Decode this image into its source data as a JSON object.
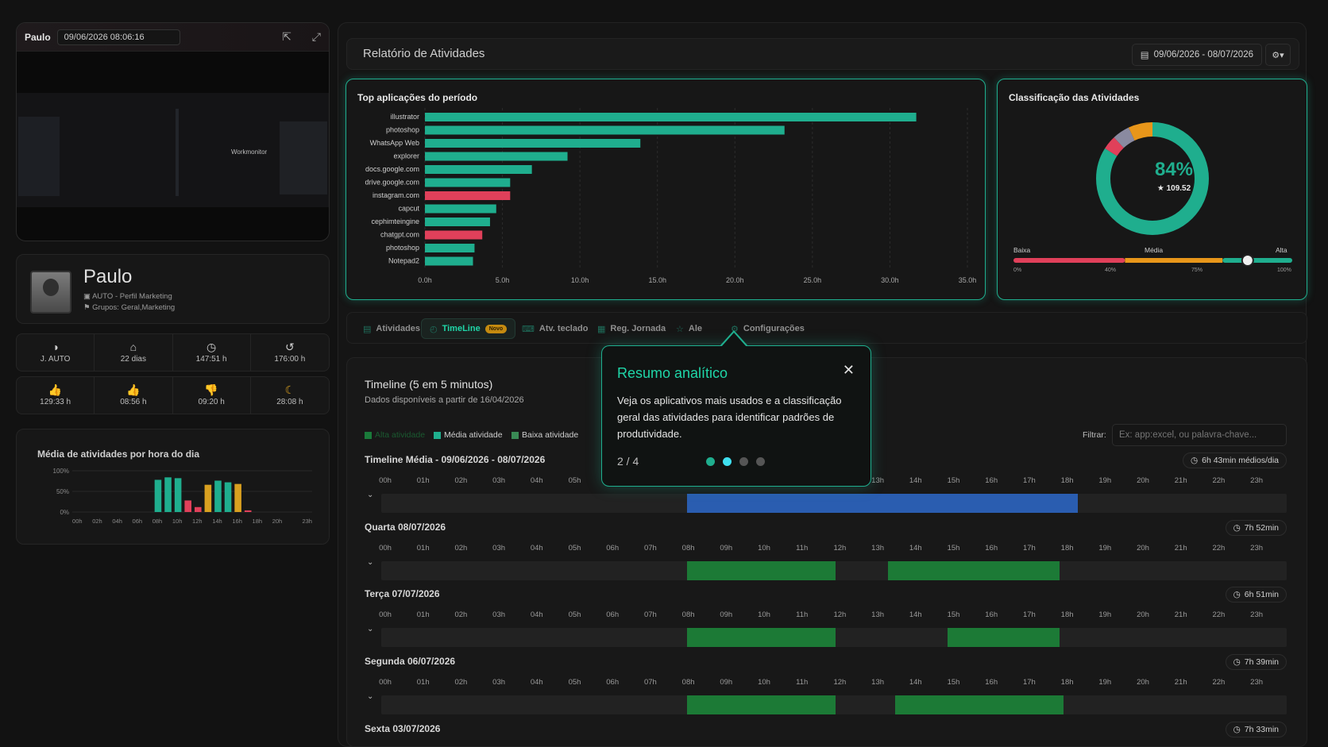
{
  "video": {
    "name": "Paulo",
    "timestamp": "09/06/2026 08:06:16",
    "brand": "Workmonitor"
  },
  "profile": {
    "name": "Paulo",
    "role": "AUTO - Perfil Marketing",
    "groups": "Grupos: Geral,Marketing"
  },
  "stats_row1": [
    {
      "icon": "gauge-icon",
      "glyph": "◑",
      "value": "J. AUTO",
      "color": "#cfcfcf"
    },
    {
      "icon": "home-icon",
      "glyph": "⌂",
      "value": "22 dias",
      "color": "#cfcfcf"
    },
    {
      "icon": "clock-icon",
      "glyph": "◷",
      "value": "147:51 h",
      "color": "#cfcfcf"
    },
    {
      "icon": "history-icon",
      "glyph": "↺",
      "value": "176:00 h",
      "color": "#cfcfcf"
    }
  ],
  "stats_row2": [
    {
      "icon": "thumbs-up-green-icon",
      "glyph": "👍",
      "value": "129:33 h",
      "color": "#1fae8e"
    },
    {
      "icon": "thumbs-up-gray-icon",
      "glyph": "👍",
      "value": "08:56 h",
      "color": "#aaaaaa"
    },
    {
      "icon": "thumbs-down-icon",
      "glyph": "👎",
      "value": "09:20 h",
      "color": "#e0405a"
    },
    {
      "icon": "moon-icon",
      "glyph": "☾",
      "value": "28:08 h",
      "color": "#d9a020"
    }
  ],
  "hourly": {
    "title": "Média de atividades por hora do dia",
    "yticks": [
      "100%",
      "50%",
      "0%"
    ],
    "xticks": [
      "00h",
      "02h",
      "04h",
      "06h",
      "08h",
      "10h",
      "12h",
      "14h",
      "16h",
      "18h",
      "20h",
      "23h"
    ]
  },
  "header": {
    "title": "Relatório de Atividades",
    "date_range": "09/06/2026 - 08/07/2026"
  },
  "top_apps": {
    "title": "Top aplicações do período"
  },
  "classification": {
    "title": "Classificação das Atividades",
    "percent": "84%",
    "score": "★ 109.52",
    "gauge_labels": [
      "Baixa",
      "Média",
      "Alta"
    ],
    "gauge_ticks": [
      "0%",
      "40%",
      "75%",
      "100%"
    ],
    "gauge_value": 0.84
  },
  "chart_data": [
    {
      "type": "bar",
      "title": "Top aplicações do período",
      "orientation": "horizontal",
      "categories": [
        "illustrator",
        "photoshop",
        "WhatsApp Web",
        "explorer",
        "docs.google.com",
        "drive.google.com",
        "instagram.com",
        "capcut",
        "cephimteingine",
        "chatgpt.com",
        "photoshop",
        "Notepad2"
      ],
      "values": [
        31.7,
        23.2,
        13.9,
        9.2,
        6.9,
        5.5,
        5.5,
        4.6,
        4.2,
        3.7,
        3.2,
        3.1
      ],
      "colors": [
        "#1fae8e",
        "#1fae8e",
        "#1fae8e",
        "#1fae8e",
        "#1fae8e",
        "#1fae8e",
        "#e0405a",
        "#1fae8e",
        "#1fae8e",
        "#e0405a",
        "#1fae8e",
        "#1fae8e"
      ],
      "xticks": [
        "0.0h",
        "5.0h",
        "10.0h",
        "15.0h",
        "20.0h",
        "25.0h",
        "30.0h",
        "35.0h"
      ],
      "xlim": [
        0,
        35
      ]
    },
    {
      "type": "pie",
      "title": "Classificação das Atividades",
      "values": [
        84,
        4,
        5,
        7
      ],
      "colors": [
        "#1fae8e",
        "#e0405a",
        "#8a8aa0",
        "#e8961a"
      ]
    },
    {
      "type": "bar",
      "title": "Média de atividades por hora do dia",
      "categories": [
        "00h",
        "01h",
        "02h",
        "03h",
        "04h",
        "05h",
        "06h",
        "07h",
        "08h",
        "09h",
        "10h",
        "11h",
        "12h",
        "13h",
        "14h",
        "15h",
        "16h",
        "17h",
        "18h",
        "19h",
        "20h",
        "21h",
        "22h",
        "23h"
      ],
      "values": [
        0,
        0,
        0,
        0,
        0,
        0,
        0,
        0,
        78,
        84,
        82,
        28,
        12,
        66,
        76,
        72,
        68,
        4,
        0,
        0,
        0,
        0,
        0,
        0
      ],
      "colors": [
        "#1fae8e",
        "#1fae8e",
        "#1fae8e",
        "#1fae8e",
        "#1fae8e",
        "#1fae8e",
        "#1fae8e",
        "#1fae8e",
        "#1fae8e",
        "#1fae8e",
        "#1fae8e",
        "#e0405a",
        "#e0405a",
        "#d9a020",
        "#1fae8e",
        "#1fae8e",
        "#d9a020",
        "#e0405a",
        "#1fae8e",
        "#1fae8e",
        "#1fae8e",
        "#1fae8e",
        "#1fae8e",
        "#1fae8e"
      ],
      "ylim": [
        0,
        100
      ]
    }
  ],
  "tabs": [
    {
      "label": "Atividades",
      "icon": "table-icon",
      "glyph": "▤"
    },
    {
      "label": "TimeLine",
      "icon": "timeline-icon",
      "glyph": "◴",
      "badge": "Novo",
      "active": true
    },
    {
      "label": "Atv. teclado",
      "icon": "keyboard-icon",
      "glyph": "⌨"
    },
    {
      "label": "Reg. Jornada",
      "icon": "journal-icon",
      "glyph": "▦"
    },
    {
      "label": "Ale",
      "icon": "alert-icon",
      "glyph": "☆"
    },
    {
      "label": "Configurações",
      "icon": "gear-icon",
      "glyph": "⚙"
    }
  ],
  "timeline": {
    "title": "Timeline (5 em 5 minutos)",
    "subtitle": "Dados disponíveis a partir de 16/04/2026",
    "filter_label": "Filtrar:",
    "filter_placeholder": "Ex: app:excel, ou palavra-chave...",
    "legend": [
      {
        "label": "Alta atividade",
        "color": "#1a7a3a"
      },
      {
        "label": "Média atividade",
        "color": "#1fae8e"
      },
      {
        "label": "Baixa atividade",
        "color": "#3a8a55"
      }
    ],
    "hours": [
      "00h",
      "01h",
      "02h",
      "03h",
      "04h",
      "05h",
      "06h",
      "07h",
      "08h",
      "09h",
      "10h",
      "11h",
      "12h",
      "13h",
      "14h",
      "15h",
      "16h",
      "17h",
      "18h",
      "19h",
      "20h",
      "21h",
      "22h",
      "23h"
    ],
    "days": [
      {
        "title": "Timeline Média - 09/06/2026 - 08/07/2026",
        "badge": "6h 43min médios/dia",
        "segments": [
          {
            "s": 8.0,
            "e": 18.5,
            "c": "#2a5db0"
          }
        ]
      },
      {
        "title": "Quarta 08/07/2026",
        "badge": "7h 52min",
        "segments": [
          {
            "s": 8.0,
            "e": 12.0,
            "c": "#1c7a36"
          },
          {
            "s": 13.4,
            "e": 18.0,
            "c": "#1c7a36"
          }
        ]
      },
      {
        "title": "Terça 07/07/2026",
        "badge": "6h 51min",
        "segments": [
          {
            "s": 8.0,
            "e": 12.0,
            "c": "#1c7a36"
          },
          {
            "s": 15.0,
            "e": 18.0,
            "c": "#1c7a36"
          }
        ]
      },
      {
        "title": "Segunda 06/07/2026",
        "badge": "7h 39min",
        "segments": [
          {
            "s": 8.0,
            "e": 12.0,
            "c": "#1c7a36"
          },
          {
            "s": 13.6,
            "e": 18.1,
            "c": "#1c7a36"
          }
        ]
      },
      {
        "title": "Sexta 03/07/2026",
        "badge": "7h 33min",
        "segments": []
      }
    ]
  },
  "popover": {
    "title": "Resumo analítico",
    "body": "Veja os aplicativos mais usados e a classificação geral das atividades para identificar padrões de produtividade.",
    "step": "2 / 4",
    "close": "✕"
  }
}
